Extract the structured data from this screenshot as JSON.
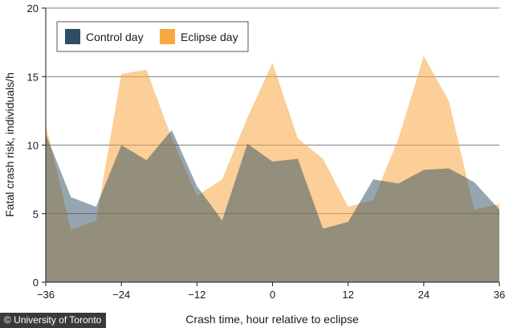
{
  "chart_data": {
    "type": "area",
    "xlabel": "Crash time, hour relative to eclipse",
    "ylabel": "Fatal crash risk, individuals/h",
    "xlim": [
      -36,
      36
    ],
    "ylim": [
      0,
      20
    ],
    "x_ticks": [
      -36,
      -24,
      -12,
      0,
      12,
      24,
      36
    ],
    "y_ticks": [
      0,
      5,
      10,
      15,
      20
    ],
    "x_tick_labels": [
      "−36",
      "−24",
      "−12",
      "0",
      "12",
      "24",
      "36"
    ],
    "y_tick_labels": [
      "0",
      "5",
      "10",
      "15",
      "20"
    ],
    "legend_position": "top-left",
    "series": [
      {
        "name": "Eclipse day",
        "color": "#F7A841",
        "x": [
          -36,
          -32,
          -28,
          -24,
          -20,
          -16,
          -12,
          -8,
          -4,
          0,
          4,
          8,
          12,
          16,
          20,
          24,
          28,
          32,
          36
        ],
        "values": [
          11.5,
          3.8,
          4.5,
          15.2,
          15.5,
          10.5,
          6.3,
          7.5,
          12.0,
          16.0,
          10.5,
          9.0,
          5.5,
          6.0,
          10.5,
          16.5,
          13.2,
          5.3,
          5.7
        ]
      },
      {
        "name": "Control day",
        "color": "#2D4E63",
        "x": [
          -36,
          -32,
          -28,
          -24,
          -20,
          -16,
          -12,
          -8,
          -4,
          0,
          4,
          8,
          12,
          16,
          20,
          24,
          28,
          32,
          36
        ],
        "values": [
          10.8,
          6.2,
          5.5,
          10.0,
          8.9,
          11.1,
          7.0,
          4.5,
          10.1,
          8.8,
          9.0,
          3.9,
          4.4,
          7.5,
          7.2,
          8.2,
          8.3,
          7.3,
          5.3
        ]
      }
    ]
  },
  "watermark": {
    "text": "© University of Toronto"
  }
}
